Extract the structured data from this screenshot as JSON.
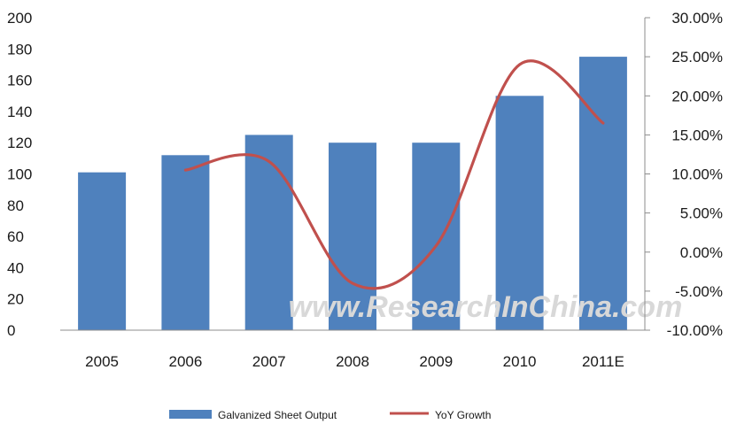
{
  "chart_data": {
    "type": "bar",
    "categories": [
      "2005",
      "2006",
      "2007",
      "2008",
      "2009",
      "2010",
      "2011E"
    ],
    "series": [
      {
        "name": "Galvanized Sheet Output",
        "type": "bar",
        "axis": "left",
        "color": "#4f81bd",
        "values": [
          101,
          112,
          125,
          120,
          120,
          150,
          175
        ]
      },
      {
        "name": "YoY Growth",
        "type": "line",
        "axis": "right",
        "color": "#c0504d",
        "values": [
          null,
          10.5,
          11.6,
          -4.0,
          0.8,
          24.0,
          16.5
        ]
      }
    ],
    "y_left": {
      "ylim": [
        0,
        200
      ],
      "ticks": [
        "0",
        "20",
        "40",
        "60",
        "80",
        "100",
        "120",
        "140",
        "160",
        "180",
        "200"
      ]
    },
    "y_right": {
      "ylim": [
        -10,
        30
      ],
      "ticks": [
        "-10.00%",
        "-5.00%",
        "0.00%",
        "5.00%",
        "10.00%",
        "15.00%",
        "20.00%",
        "25.00%",
        "30.00%"
      ]
    },
    "legend_position": "bottom",
    "grid": false,
    "watermark": "www.ResearchInChina.com"
  }
}
